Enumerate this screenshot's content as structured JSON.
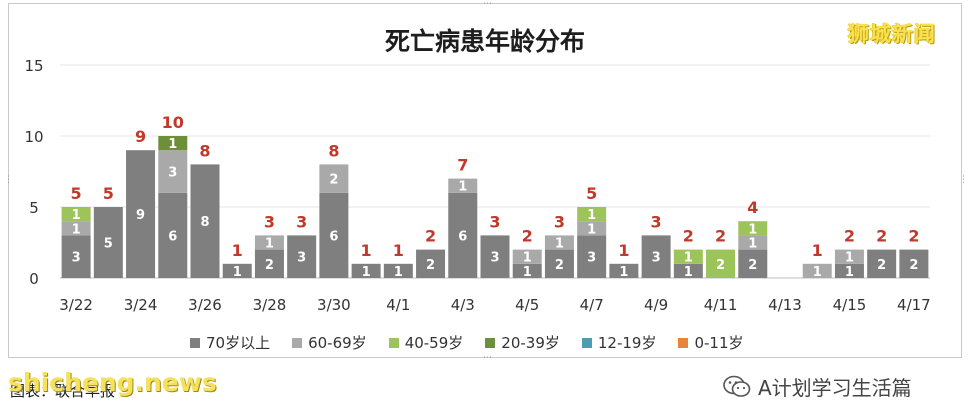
{
  "header": {
    "title": "死亡病患年龄分布",
    "brand": "狮城新闻"
  },
  "footer": {
    "source": "图表：联合早报",
    "watermark": "shicheng.news",
    "account": "A计划学习生活篇"
  },
  "colors": {
    "70plus": "#7f7f7f",
    "60_69": "#a9a9a9",
    "40_59": "#9cc45a",
    "20_39": "#6e8f3a",
    "12_19": "#4b9db1",
    "0_11": "#e8843a",
    "total_label": "#c0392b"
  },
  "chart_data": {
    "type": "bar",
    "stacked": true,
    "title": "死亡病患年龄分布",
    "categories": [
      "3/22",
      "3/23",
      "3/24",
      "3/25",
      "3/26",
      "3/27",
      "3/28",
      "3/29",
      "3/30",
      "3/31",
      "4/1",
      "4/2",
      "4/3",
      "4/4",
      "4/5",
      "4/6",
      "4/7",
      "4/8",
      "4/9",
      "4/10",
      "4/11",
      "4/12",
      "4/13",
      "4/14",
      "4/15",
      "4/16",
      "4/17"
    ],
    "x_tick_labels": [
      "3/22",
      "",
      "3/24",
      "",
      "3/26",
      "",
      "3/28",
      "",
      "3/30",
      "",
      "4/1",
      "",
      "4/3",
      "",
      "4/5",
      "",
      "4/7",
      "",
      "4/9",
      "",
      "4/11",
      "",
      "4/13",
      "",
      "4/15",
      "",
      "4/17"
    ],
    "y_ticks": [
      0,
      5,
      10,
      15
    ],
    "ylim": [
      0,
      15
    ],
    "legend_position": "bottom",
    "series": [
      {
        "name": "70岁以上",
        "color_key": "70plus",
        "values": [
          3,
          5,
          9,
          6,
          8,
          1,
          2,
          3,
          6,
          1,
          1,
          2,
          6,
          3,
          1,
          2,
          3,
          1,
          3,
          1,
          0,
          2,
          0,
          0,
          1,
          2,
          2
        ]
      },
      {
        "name": "60-69岁",
        "color_key": "60_69",
        "values": [
          1,
          0,
          0,
          3,
          0,
          0,
          1,
          0,
          2,
          0,
          0,
          0,
          1,
          0,
          1,
          1,
          1,
          0,
          0,
          0,
          0,
          1,
          0,
          1,
          1,
          0,
          0
        ]
      },
      {
        "name": "40-59岁",
        "color_key": "40_59",
        "values": [
          1,
          0,
          0,
          0,
          0,
          0,
          0,
          0,
          0,
          0,
          0,
          0,
          0,
          0,
          0,
          0,
          1,
          0,
          0,
          1,
          2,
          1,
          0,
          0,
          0,
          0,
          0
        ]
      },
      {
        "name": "20-39岁",
        "color_key": "20_39",
        "values": [
          0,
          0,
          0,
          1,
          0,
          0,
          0,
          0,
          0,
          0,
          0,
          0,
          0,
          0,
          0,
          0,
          0,
          0,
          0,
          0,
          0,
          0,
          0,
          0,
          0,
          0,
          0
        ]
      },
      {
        "name": "12-19岁",
        "color_key": "12_19",
        "values": [
          0,
          0,
          0,
          0,
          0,
          0,
          0,
          0,
          0,
          0,
          0,
          0,
          0,
          0,
          0,
          0,
          0,
          0,
          0,
          0,
          0,
          0,
          0,
          0,
          0,
          0,
          0
        ]
      },
      {
        "name": "0-11岁",
        "color_key": "0_11",
        "values": [
          0,
          0,
          0,
          0,
          0,
          0,
          0,
          0,
          0,
          0,
          0,
          0,
          0,
          0,
          0,
          0,
          0,
          0,
          0,
          0,
          0,
          0,
          0,
          0,
          0,
          0,
          0
        ]
      }
    ],
    "totals": [
      5,
      5,
      9,
      10,
      8,
      1,
      3,
      3,
      8,
      1,
      1,
      2,
      7,
      3,
      2,
      3,
      5,
      1,
      3,
      2,
      2,
      4,
      0,
      1,
      2,
      2,
      2
    ]
  }
}
